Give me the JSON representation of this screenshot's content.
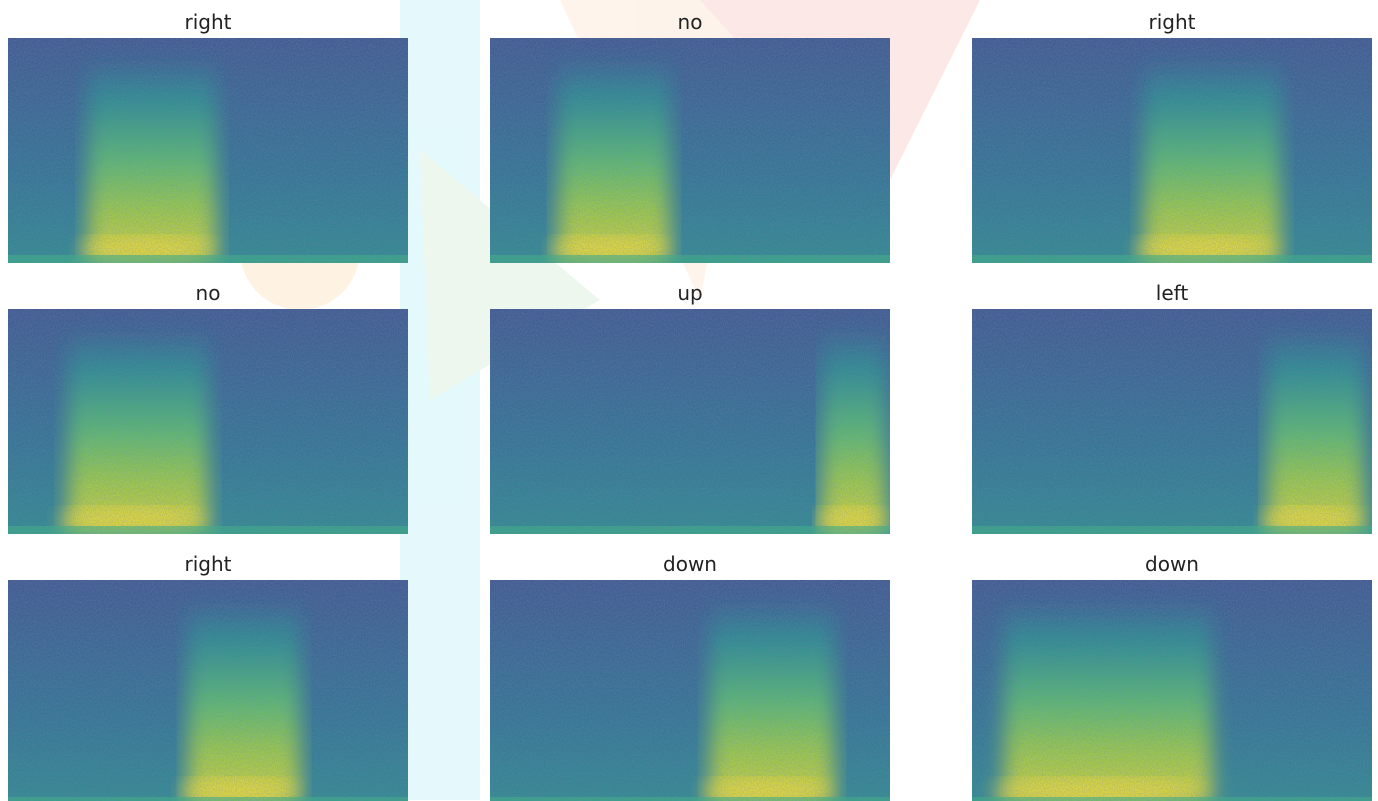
{
  "panels": [
    {
      "title": "right"
    },
    {
      "title": "no"
    },
    {
      "title": "right"
    },
    {
      "title": "no"
    },
    {
      "title": "up"
    },
    {
      "title": "left"
    },
    {
      "title": "right"
    },
    {
      "title": "down"
    },
    {
      "title": "down"
    }
  ]
}
